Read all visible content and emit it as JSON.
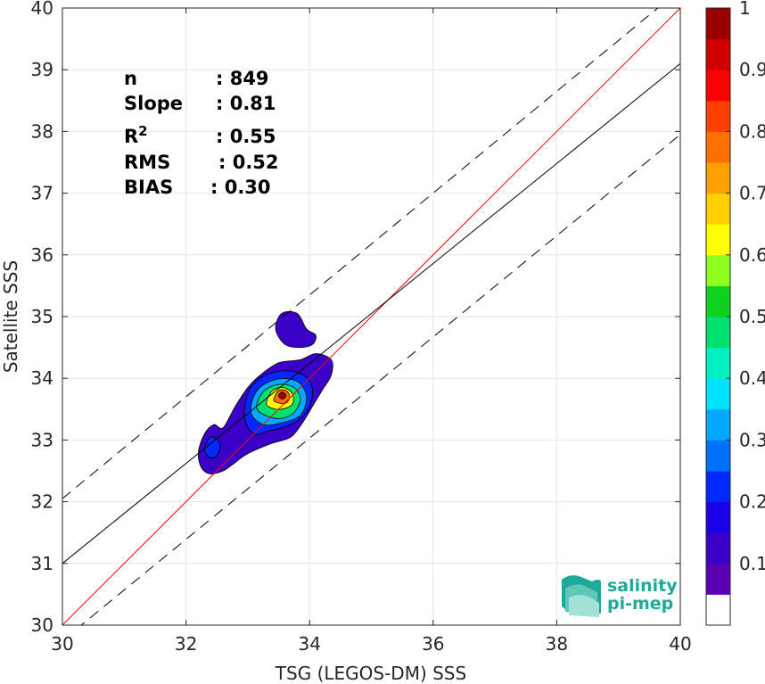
{
  "chart_data": {
    "type": "heatmap",
    "xlabel": "TSG (LEGOS-DM) SSS",
    "ylabel": "Satellite SSS",
    "xlim": [
      30,
      40
    ],
    "ylim": [
      30,
      40
    ],
    "xticks": [
      30,
      32,
      34,
      36,
      38,
      40
    ],
    "yticks": [
      30,
      31,
      32,
      33,
      34,
      35,
      36,
      37,
      38,
      39,
      40
    ],
    "grid": true,
    "stats": [
      {
        "key": "n",
        "sup": "",
        "value": ": 849"
      },
      {
        "key": "Slope",
        "sup": "",
        "value": ": 0.81"
      },
      {
        "key": "R",
        "sup": "2",
        "value": ": 0.55"
      },
      {
        "key": "RMS",
        "sup": "",
        "value": ": 0.52"
      },
      {
        "key": "BIAS",
        "sup": "",
        "value": ": 0.30"
      }
    ],
    "lines": [
      {
        "name": "identity",
        "color": "#ff0000",
        "x": [
          30,
          40
        ],
        "y": [
          30,
          40
        ]
      },
      {
        "name": "regression",
        "color": "#000000",
        "x": [
          30,
          40
        ],
        "y": [
          31,
          39.1
        ]
      },
      {
        "name": "upper-bound",
        "color": "#000000",
        "dash": true,
        "x": [
          30,
          40
        ],
        "y": [
          32.05,
          40.3
        ]
      },
      {
        "name": "lower-bound",
        "color": "#000000",
        "dash": true,
        "x": [
          30,
          40
        ],
        "y": [
          29.75,
          37.95
        ]
      }
    ],
    "colorbar": {
      "min": 0,
      "max": 1,
      "ticks": [
        "0.1",
        "0.2",
        "0.3",
        "0.4",
        "0.5",
        "0.6",
        "0.7",
        "0.8",
        "0.9",
        "1"
      ],
      "levels": [
        "#ffffff",
        "#5a00b4",
        "#3a00c8",
        "#1a00e6",
        "#0028ff",
        "#0070ff",
        "#00a8ff",
        "#00e0ff",
        "#00f0c0",
        "#00e070",
        "#10d020",
        "#90ff20",
        "#ffff00",
        "#ffd000",
        "#ffa000",
        "#ff7000",
        "#ff4000",
        "#ff0000",
        "#d00000",
        "#9a0000"
      ]
    },
    "density_contours": [
      {
        "level": 0.05,
        "color": "#3a00c8",
        "points": [
          [
            32.2,
            32.8
          ],
          [
            32.3,
            33.1
          ],
          [
            32.45,
            33.25
          ],
          [
            32.6,
            33.2
          ],
          [
            32.8,
            33.55
          ],
          [
            33.0,
            33.85
          ],
          [
            33.2,
            34.05
          ],
          [
            33.5,
            34.25
          ],
          [
            33.85,
            34.3
          ],
          [
            34.1,
            34.4
          ],
          [
            34.35,
            34.3
          ],
          [
            34.35,
            34.05
          ],
          [
            34.2,
            33.8
          ],
          [
            34.05,
            33.55
          ],
          [
            33.9,
            33.3
          ],
          [
            33.7,
            33.05
          ],
          [
            33.4,
            32.95
          ],
          [
            33.15,
            32.85
          ],
          [
            32.95,
            32.75
          ],
          [
            32.75,
            32.6
          ],
          [
            32.6,
            32.5
          ],
          [
            32.4,
            32.45
          ],
          [
            32.25,
            32.55
          ]
        ]
      },
      {
        "level": 0.05,
        "color": "#3a00c8",
        "points": [
          [
            33.45,
            34.8
          ],
          [
            33.55,
            35.05
          ],
          [
            33.8,
            35.05
          ],
          [
            33.95,
            34.8
          ],
          [
            34.1,
            34.7
          ],
          [
            34.05,
            34.55
          ],
          [
            33.85,
            34.5
          ],
          [
            33.6,
            34.55
          ]
        ]
      },
      {
        "level": 0.1,
        "color": "#0028ff",
        "points": [
          [
            32.3,
            32.85
          ],
          [
            32.4,
            33.05
          ],
          [
            32.55,
            32.95
          ],
          [
            32.5,
            32.75
          ],
          [
            32.38,
            32.72
          ]
        ]
      },
      {
        "level": 0.1,
        "color": "#0028ff",
        "points": [
          [
            32.95,
            33.35
          ],
          [
            33.0,
            33.75
          ],
          [
            33.2,
            34.0
          ],
          [
            33.55,
            34.12
          ],
          [
            33.9,
            34.05
          ],
          [
            34.05,
            33.8
          ],
          [
            33.95,
            33.45
          ],
          [
            33.7,
            33.25
          ],
          [
            33.35,
            33.15
          ],
          [
            33.1,
            33.1
          ]
        ]
      },
      {
        "level": 0.2,
        "color": "#00a8ff",
        "points": [
          [
            33.05,
            33.45
          ],
          [
            33.15,
            33.8
          ],
          [
            33.45,
            33.98
          ],
          [
            33.8,
            33.95
          ],
          [
            33.95,
            33.7
          ],
          [
            33.85,
            33.4
          ],
          [
            33.55,
            33.28
          ],
          [
            33.25,
            33.25
          ]
        ]
      },
      {
        "level": 0.35,
        "color": "#00e070",
        "points": [
          [
            33.15,
            33.5
          ],
          [
            33.25,
            33.78
          ],
          [
            33.5,
            33.9
          ],
          [
            33.75,
            33.85
          ],
          [
            33.85,
            33.65
          ],
          [
            33.72,
            33.42
          ],
          [
            33.45,
            33.35
          ]
        ]
      },
      {
        "level": 0.6,
        "color": "#ffff00",
        "points": [
          [
            33.3,
            33.6
          ],
          [
            33.4,
            33.8
          ],
          [
            33.58,
            33.85
          ],
          [
            33.72,
            33.75
          ],
          [
            33.72,
            33.58
          ],
          [
            33.55,
            33.5
          ],
          [
            33.38,
            33.52
          ]
        ]
      },
      {
        "level": 0.8,
        "color": "#ff7000",
        "points": [
          [
            33.42,
            33.65
          ],
          [
            33.5,
            33.8
          ],
          [
            33.62,
            33.8
          ],
          [
            33.68,
            33.7
          ],
          [
            33.62,
            33.6
          ],
          [
            33.5,
            33.6
          ]
        ]
      },
      {
        "level": 1.0,
        "color": "#9a0000",
        "points": [
          [
            33.5,
            33.72
          ],
          [
            33.56,
            33.78
          ],
          [
            33.62,
            33.72
          ],
          [
            33.56,
            33.66
          ]
        ]
      }
    ]
  },
  "logo": {
    "line1": "salinity",
    "line2": "pi-mep"
  }
}
